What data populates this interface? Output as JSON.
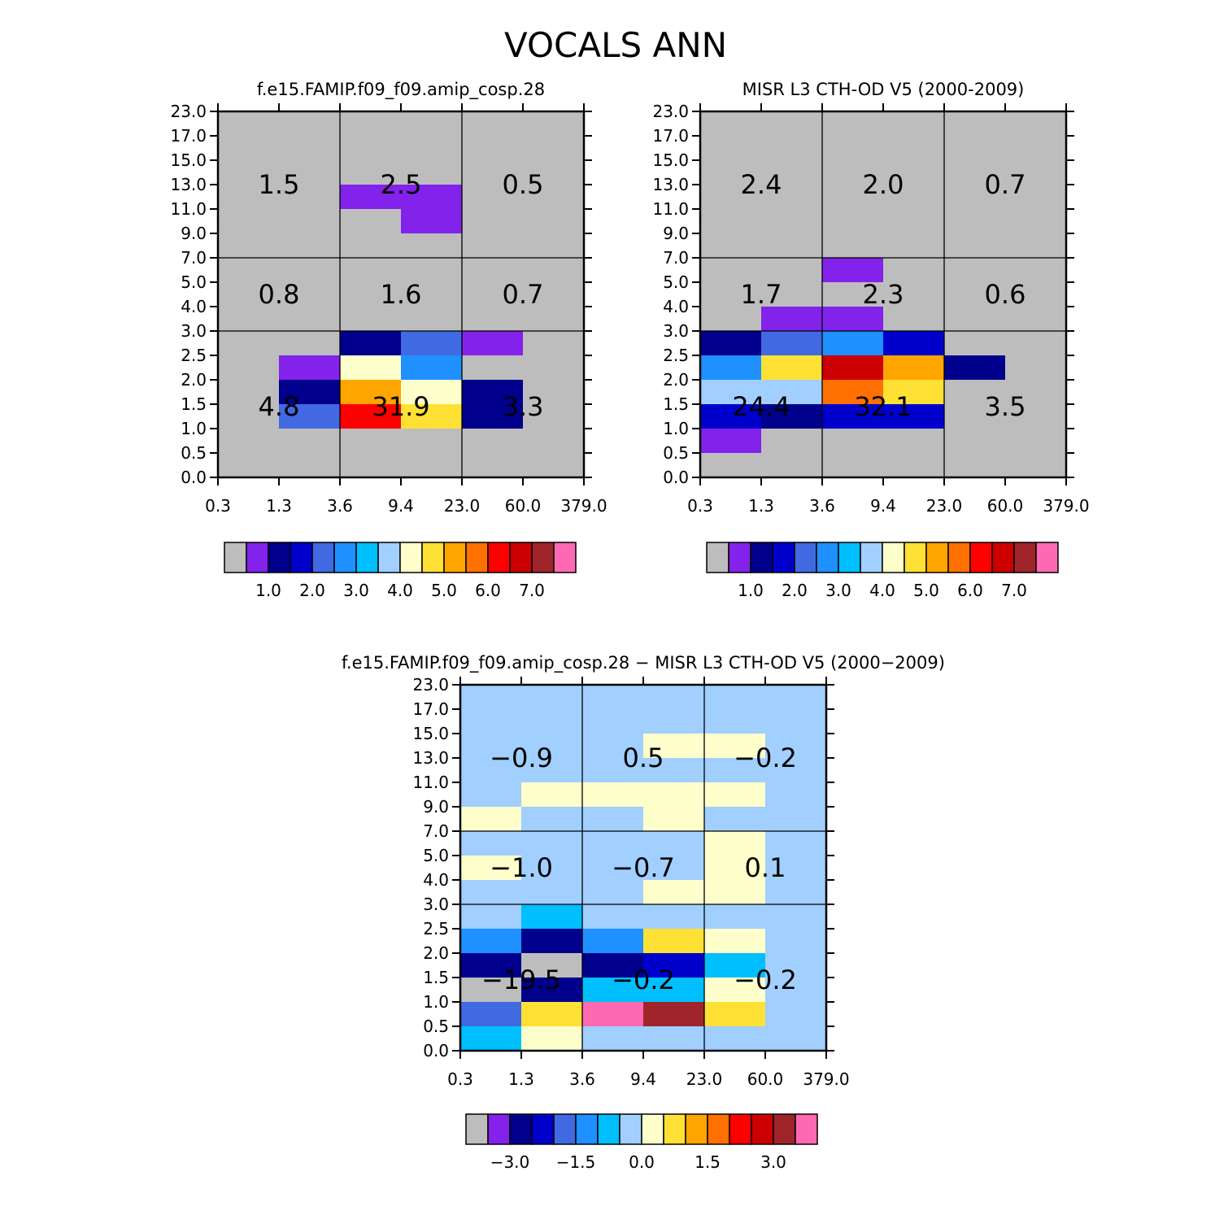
{
  "title": "VOCALS ANN",
  "colors": {
    "abs_palette": [
      "#bdbdbd",
      "#8322ea",
      "#00008c",
      "#0000cd",
      "#4169e1",
      "#1e90ff",
      "#00bfff",
      "#a1cfff",
      "#ffffcc",
      "#ffe135",
      "#ffa500",
      "#ff7000",
      "#ff0000",
      "#cc0000",
      "#a0252a",
      "#ff69b4"
    ],
    "diff_palette": [
      "#bdbdbd",
      "#8322ea",
      "#00008c",
      "#0000cd",
      "#4169e1",
      "#1e90ff",
      "#00bfff",
      "#a1cfff",
      "#ffffcc",
      "#ffe135",
      "#ffa500",
      "#ff7000",
      "#ff0000",
      "#cc0000",
      "#a0252a",
      "#ff69b4"
    ]
  },
  "chart_data": [
    {
      "type": "heatmap",
      "title": "f.e15.FAMIP.f09_f09.amip_cosp.28",
      "x_ticks": [
        "0.3",
        "1.3",
        "3.6",
        "9.4",
        "23.0",
        "60.0",
        "379.0"
      ],
      "y_ticks": [
        "0.0",
        "0.5",
        "1.0",
        "1.5",
        "2.0",
        "2.5",
        "3.0",
        "4.0",
        "5.0",
        "7.0",
        "9.0",
        "11.0",
        "13.0",
        "15.0",
        "17.0",
        "23.0"
      ],
      "grid": [
        [
          0,
          0,
          0,
          0,
          0,
          0
        ],
        [
          0,
          0,
          0,
          0,
          0,
          0
        ],
        [
          0,
          0,
          0,
          0,
          0,
          0
        ],
        [
          0,
          0,
          1,
          1,
          0,
          0
        ],
        [
          0,
          0,
          0,
          1,
          0,
          0
        ],
        [
          0,
          0,
          0,
          0,
          0,
          0
        ],
        [
          0,
          0,
          0,
          0,
          0,
          0
        ],
        [
          0,
          0,
          0,
          0,
          0,
          0
        ],
        [
          0,
          0,
          0,
          0,
          0,
          0
        ],
        [
          0,
          0,
          2,
          4,
          1,
          0
        ],
        [
          0,
          1,
          8,
          5,
          0,
          0
        ],
        [
          0,
          2,
          10,
          8,
          2,
          0
        ],
        [
          0,
          4,
          12,
          9,
          2,
          0
        ],
        [
          0,
          0,
          0,
          0,
          0,
          0
        ],
        [
          0,
          0,
          0,
          0,
          0,
          0
        ]
      ],
      "region_values": [
        [
          "1.5",
          "2.5",
          "0.5"
        ],
        [
          "0.8",
          "1.6",
          "0.7"
        ],
        [
          "4.8",
          "31.9",
          "3.3"
        ]
      ],
      "colorbar": {
        "labels": [
          "1.0",
          "2.0",
          "3.0",
          "4.0",
          "5.0",
          "6.0",
          "7.0"
        ]
      }
    },
    {
      "type": "heatmap",
      "title": "MISR L3 CTH-OD V5 (2000-2009)",
      "x_ticks": [
        "0.3",
        "1.3",
        "3.6",
        "9.4",
        "23.0",
        "60.0",
        "379.0"
      ],
      "y_ticks": [
        "0.0",
        "0.5",
        "1.0",
        "1.5",
        "2.0",
        "2.5",
        "3.0",
        "4.0",
        "5.0",
        "7.0",
        "9.0",
        "11.0",
        "13.0",
        "15.0",
        "17.0",
        "23.0"
      ],
      "grid": [
        [
          0,
          0,
          0,
          0,
          0,
          0
        ],
        [
          0,
          0,
          0,
          0,
          0,
          0
        ],
        [
          0,
          0,
          0,
          0,
          0,
          0
        ],
        [
          0,
          0,
          0,
          0,
          0,
          0
        ],
        [
          0,
          0,
          0,
          0,
          0,
          0
        ],
        [
          0,
          0,
          0,
          0,
          0,
          0
        ],
        [
          0,
          0,
          1,
          0,
          0,
          0
        ],
        [
          0,
          0,
          0,
          0,
          0,
          0
        ],
        [
          0,
          1,
          1,
          0,
          0,
          0
        ],
        [
          2,
          4,
          5,
          3,
          0,
          0
        ],
        [
          5,
          9,
          13,
          10,
          2,
          0
        ],
        [
          7,
          7,
          11,
          9,
          0,
          0
        ],
        [
          3,
          2,
          3,
          3,
          0,
          0
        ],
        [
          1,
          0,
          0,
          0,
          0,
          0
        ],
        [
          0,
          0,
          0,
          0,
          0,
          0
        ]
      ],
      "region_values": [
        [
          "2.4",
          "2.0",
          "0.7"
        ],
        [
          "1.7",
          "2.3",
          "0.6"
        ],
        [
          "24.4",
          "32.1",
          "3.5"
        ]
      ],
      "colorbar": {
        "labels": [
          "1.0",
          "2.0",
          "3.0",
          "4.0",
          "5.0",
          "6.0",
          "7.0"
        ]
      }
    },
    {
      "type": "heatmap",
      "title": "f.e15.FAMIP.f09_f09.amip_cosp.28 − MISR L3 CTH-OD V5 (2000−2009)",
      "x_ticks": [
        "0.3",
        "1.3",
        "3.6",
        "9.4",
        "23.0",
        "60.0",
        "379.0"
      ],
      "y_ticks": [
        "0.0",
        "0.5",
        "1.0",
        "1.5",
        "2.0",
        "2.5",
        "3.0",
        "4.0",
        "5.0",
        "7.0",
        "9.0",
        "11.0",
        "13.0",
        "15.0",
        "17.0",
        "23.0"
      ],
      "grid": [
        [
          7,
          7,
          7,
          7,
          7,
          7
        ],
        [
          7,
          7,
          7,
          7,
          7,
          7
        ],
        [
          7,
          7,
          7,
          8,
          8,
          7
        ],
        [
          7,
          7,
          7,
          7,
          7,
          7
        ],
        [
          7,
          8,
          8,
          8,
          8,
          7
        ],
        [
          8,
          7,
          7,
          8,
          7,
          7
        ],
        [
          7,
          7,
          7,
          7,
          8,
          7
        ],
        [
          8,
          7,
          7,
          7,
          8,
          7
        ],
        [
          7,
          7,
          7,
          8,
          8,
          7
        ],
        [
          7,
          6,
          7,
          7,
          7,
          7
        ],
        [
          5,
          2,
          5,
          9,
          8,
          7
        ],
        [
          2,
          0,
          2,
          3,
          6,
          7
        ],
        [
          0,
          2,
          6,
          6,
          8,
          7
        ],
        [
          4,
          9,
          15,
          14,
          9,
          7
        ],
        [
          6,
          8,
          7,
          7,
          7,
          7
        ]
      ],
      "region_values": [
        [
          "−0.9",
          "0.5",
          "−0.2"
        ],
        [
          "−1.0",
          "−0.7",
          "0.1"
        ],
        [
          "−19.5",
          "−0.2",
          "−0.2"
        ]
      ],
      "colorbar": {
        "labels": [
          "−3.0",
          "−1.5",
          "0.0",
          "1.5",
          "3.0"
        ]
      }
    }
  ]
}
